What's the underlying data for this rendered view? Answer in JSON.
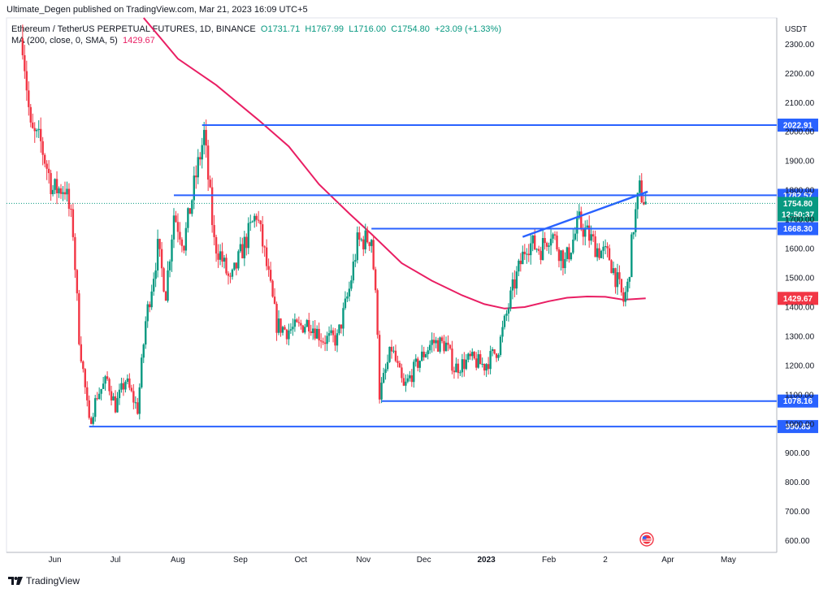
{
  "published_by": "Ultimate_Degen published on TradingView.com, Mar 21, 2023 16:09 UTC+5",
  "brand": "TradingView",
  "legend": {
    "symbol": "Ethereum / TetherUS PERPETUAL FUTURES, 1D, BINANCE",
    "open": "O1731.71",
    "high": "H1767.99",
    "low": "L1716.00",
    "close": "C1754.80",
    "change": "+23.09 (+1.33%)",
    "ma_label": "MA (200, close, 0, SMA, 5)",
    "ma_value": "1429.67"
  },
  "colors": {
    "up": "#089981",
    "down": "#f23645",
    "ma": "#e91e63",
    "level": "#2962ff",
    "countdown": "#089981"
  },
  "chart_data": {
    "type": "candlestick",
    "currency": "USDT",
    "ylim": [
      560,
      2390
    ],
    "y_ticks": [
      "600.00",
      "700.00",
      "800.00",
      "900.00",
      "1000.00",
      "1100.00",
      "1200.00",
      "1300.00",
      "1400.00",
      "1500.00",
      "1600.00",
      "1700.00",
      "1800.00",
      "1900.00",
      "2000.00",
      "2100.00",
      "2200.00",
      "2300.00"
    ],
    "x_ticks": [
      "Jun",
      "Jul",
      "Aug",
      "Sep",
      "Oct",
      "Nov",
      "Dec",
      "2023",
      "Feb",
      "2",
      "Apr",
      "May"
    ],
    "levels": [
      {
        "label": "2022.91",
        "value": 2022.91
      },
      {
        "label": "1782.57",
        "value": 1782.57
      },
      {
        "label": "1668.30",
        "value": 1668.3
      },
      {
        "label": "1078.16",
        "value": 1078.16
      },
      {
        "label": "990.83",
        "value": 990.83
      }
    ],
    "last_price": {
      "label": "1754.80",
      "value": 1754.8,
      "countdown": "12:50:37"
    },
    "ma_label": {
      "label": "1429.67",
      "value": 1429.67
    },
    "price_path": [
      [
        "2022-05-16",
        2320
      ],
      [
        "2022-05-20",
        2000
      ],
      [
        "2022-05-25",
        1960
      ],
      [
        "2022-05-31",
        1800
      ],
      [
        "2022-06-06",
        1810
      ],
      [
        "2022-06-10",
        1660
      ],
      [
        "2022-06-13",
        1300
      ],
      [
        "2022-06-18",
        1000
      ],
      [
        "2022-06-22",
        1100
      ],
      [
        "2022-06-27",
        1150
      ],
      [
        "2022-07-01",
        1060
      ],
      [
        "2022-07-06",
        1150
      ],
      [
        "2022-07-12",
        1050
      ],
      [
        "2022-07-16",
        1350
      ],
      [
        "2022-07-22",
        1600
      ],
      [
        "2022-07-26",
        1450
      ],
      [
        "2022-07-30",
        1720
      ],
      [
        "2022-08-04",
        1620
      ],
      [
        "2022-08-10",
        1850
      ],
      [
        "2022-08-14",
        1990
      ],
      [
        "2022-08-19",
        1620
      ],
      [
        "2022-08-22",
        1580
      ],
      [
        "2022-08-27",
        1480
      ],
      [
        "2022-09-01",
        1580
      ],
      [
        "2022-09-09",
        1720
      ],
      [
        "2022-09-13",
        1580
      ],
      [
        "2022-09-19",
        1340
      ],
      [
        "2022-09-24",
        1320
      ],
      [
        "2022-09-30",
        1330
      ],
      [
        "2022-10-05",
        1350
      ],
      [
        "2022-10-12",
        1290
      ],
      [
        "2022-10-19",
        1290
      ],
      [
        "2022-10-25",
        1460
      ],
      [
        "2022-10-29",
        1620
      ],
      [
        "2022-11-05",
        1640
      ],
      [
        "2022-11-08",
        1330
      ],
      [
        "2022-11-09",
        1100
      ],
      [
        "2022-11-15",
        1260
      ],
      [
        "2022-11-21",
        1120
      ],
      [
        "2022-11-28",
        1210
      ],
      [
        "2022-12-05",
        1280
      ],
      [
        "2022-12-12",
        1270
      ],
      [
        "2022-12-16",
        1190
      ],
      [
        "2022-12-24",
        1220
      ],
      [
        "2022-12-31",
        1200
      ],
      [
        "2023-01-07",
        1260
      ],
      [
        "2023-01-14",
        1460
      ],
      [
        "2023-01-21",
        1620
      ],
      [
        "2023-01-28",
        1600
      ],
      [
        "2023-02-02",
        1660
      ],
      [
        "2023-02-09",
        1550
      ],
      [
        "2023-02-16",
        1690
      ],
      [
        "2023-02-25",
        1600
      ],
      [
        "2023-03-03",
        1570
      ],
      [
        "2023-03-10",
        1420
      ],
      [
        "2023-03-12",
        1470
      ],
      [
        "2023-03-15",
        1680
      ],
      [
        "2023-03-18",
        1800
      ],
      [
        "2023-03-21",
        1755
      ]
    ],
    "ma_path": [
      [
        "2022-07-15",
        2390
      ],
      [
        "2022-08-01",
        2250
      ],
      [
        "2022-08-20",
        2160
      ],
      [
        "2022-09-10",
        2040
      ],
      [
        "2022-09-25",
        1950
      ],
      [
        "2022-10-10",
        1820
      ],
      [
        "2022-10-25",
        1720
      ],
      [
        "2022-11-05",
        1650
      ],
      [
        "2022-11-20",
        1550
      ],
      [
        "2022-12-05",
        1490
      ],
      [
        "2022-12-20",
        1440
      ],
      [
        "2022-12-31",
        1410
      ],
      [
        "2023-01-10",
        1395
      ],
      [
        "2023-01-20",
        1400
      ],
      [
        "2023-02-01",
        1420
      ],
      [
        "2023-02-10",
        1432
      ],
      [
        "2023-02-20",
        1436
      ],
      [
        "2023-03-01",
        1435
      ],
      [
        "2023-03-10",
        1425
      ],
      [
        "2023-03-21",
        1430
      ]
    ],
    "trendline": [
      [
        "2023-01-19",
        1640
      ],
      [
        "2023-03-22",
        1795
      ]
    ]
  }
}
